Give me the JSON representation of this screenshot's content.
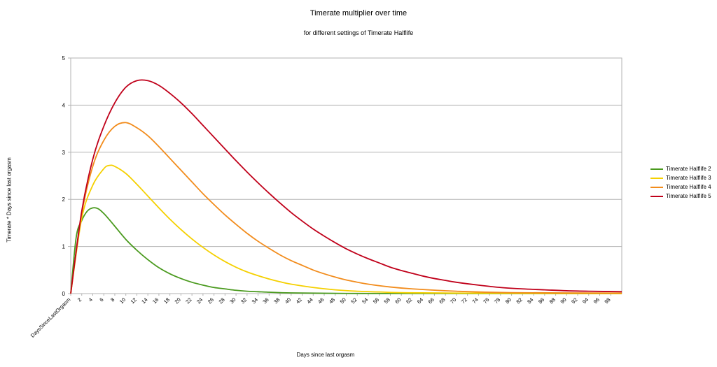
{
  "chart_data": {
    "type": "line",
    "title": "Timerate multiplier over time",
    "subtitle": "for different settings of Timerate Halflife",
    "xlabel": "Days since last orgasm",
    "ylabel": "Timerate * Days since last orgasm",
    "first_category_label": "DaysSinceLastOrgasm",
    "x_tick_labels": [
      "2",
      "4",
      "6",
      "8",
      "10",
      "12",
      "14",
      "16",
      "18",
      "20",
      "22",
      "24",
      "26",
      "28",
      "30",
      "32",
      "34",
      "36",
      "38",
      "40",
      "42",
      "44",
      "46",
      "48",
      "50",
      "52",
      "54",
      "56",
      "58",
      "60",
      "62",
      "64",
      "66",
      "68",
      "70",
      "72",
      "74",
      "76",
      "78",
      "80",
      "82",
      "84",
      "86",
      "88",
      "90",
      "92",
      "94",
      "96",
      "98"
    ],
    "xlim": [
      0,
      100
    ],
    "ylim": [
      0,
      5
    ],
    "y_ticks": [
      0,
      1,
      2,
      3,
      4,
      5
    ],
    "grid": true,
    "legend_position": "right",
    "series": [
      {
        "name": "Timerate Halflife 2",
        "color": "#4a9a1e",
        "points": [
          [
            0,
            0
          ],
          [
            1,
            1.2
          ],
          [
            2,
            1.55
          ],
          [
            3,
            1.75
          ],
          [
            4,
            1.82
          ],
          [
            5,
            1.8
          ],
          [
            6,
            1.7
          ],
          [
            7,
            1.57
          ],
          [
            8,
            1.43
          ],
          [
            10,
            1.15
          ],
          [
            12,
            0.92
          ],
          [
            14,
            0.72
          ],
          [
            16,
            0.55
          ],
          [
            18,
            0.42
          ],
          [
            20,
            0.32
          ],
          [
            22,
            0.24
          ],
          [
            24,
            0.18
          ],
          [
            26,
            0.13
          ],
          [
            28,
            0.1
          ],
          [
            30,
            0.07
          ],
          [
            32,
            0.05
          ],
          [
            34,
            0.04
          ],
          [
            36,
            0.03
          ],
          [
            40,
            0.015
          ],
          [
            50,
            0.004
          ],
          [
            60,
            0.002
          ],
          [
            100,
            0.0
          ]
        ]
      },
      {
        "name": "Timerate Halflife 3",
        "color": "#f5d000",
        "points": [
          [
            0,
            0
          ],
          [
            2,
            1.6
          ],
          [
            4,
            2.3
          ],
          [
            6,
            2.65
          ],
          [
            7,
            2.72
          ],
          [
            8,
            2.7
          ],
          [
            10,
            2.55
          ],
          [
            12,
            2.32
          ],
          [
            14,
            2.07
          ],
          [
            16,
            1.82
          ],
          [
            18,
            1.58
          ],
          [
            20,
            1.36
          ],
          [
            22,
            1.16
          ],
          [
            24,
            0.98
          ],
          [
            26,
            0.82
          ],
          [
            28,
            0.68
          ],
          [
            30,
            0.56
          ],
          [
            32,
            0.46
          ],
          [
            34,
            0.38
          ],
          [
            36,
            0.31
          ],
          [
            38,
            0.25
          ],
          [
            40,
            0.2
          ],
          [
            44,
            0.13
          ],
          [
            48,
            0.08
          ],
          [
            52,
            0.05
          ],
          [
            56,
            0.035
          ],
          [
            60,
            0.02
          ],
          [
            70,
            0.01
          ],
          [
            100,
            0.0
          ]
        ]
      },
      {
        "name": "Timerate Halflife 4",
        "color": "#f28c1c",
        "points": [
          [
            0,
            0
          ],
          [
            2,
            1.7
          ],
          [
            4,
            2.7
          ],
          [
            6,
            3.25
          ],
          [
            8,
            3.55
          ],
          [
            10,
            3.63
          ],
          [
            12,
            3.52
          ],
          [
            14,
            3.35
          ],
          [
            16,
            3.12
          ],
          [
            18,
            2.87
          ],
          [
            20,
            2.62
          ],
          [
            22,
            2.37
          ],
          [
            24,
            2.12
          ],
          [
            26,
            1.89
          ],
          [
            28,
            1.67
          ],
          [
            30,
            1.47
          ],
          [
            32,
            1.28
          ],
          [
            34,
            1.11
          ],
          [
            36,
            0.96
          ],
          [
            38,
            0.82
          ],
          [
            40,
            0.7
          ],
          [
            42,
            0.6
          ],
          [
            44,
            0.5
          ],
          [
            46,
            0.42
          ],
          [
            48,
            0.35
          ],
          [
            50,
            0.29
          ],
          [
            54,
            0.2
          ],
          [
            58,
            0.14
          ],
          [
            62,
            0.1
          ],
          [
            70,
            0.05
          ],
          [
            80,
            0.02
          ],
          [
            100,
            0.01
          ]
        ]
      },
      {
        "name": "Timerate Halflife 5",
        "color": "#c0001a",
        "points": [
          [
            0,
            0
          ],
          [
            2,
            1.75
          ],
          [
            4,
            2.85
          ],
          [
            6,
            3.55
          ],
          [
            8,
            4.05
          ],
          [
            10,
            4.38
          ],
          [
            12,
            4.52
          ],
          [
            14,
            4.52
          ],
          [
            16,
            4.42
          ],
          [
            18,
            4.25
          ],
          [
            20,
            4.05
          ],
          [
            22,
            3.82
          ],
          [
            24,
            3.57
          ],
          [
            26,
            3.32
          ],
          [
            28,
            3.07
          ],
          [
            30,
            2.82
          ],
          [
            32,
            2.58
          ],
          [
            34,
            2.35
          ],
          [
            36,
            2.13
          ],
          [
            38,
            1.92
          ],
          [
            40,
            1.72
          ],
          [
            42,
            1.54
          ],
          [
            44,
            1.37
          ],
          [
            46,
            1.22
          ],
          [
            48,
            1.08
          ],
          [
            50,
            0.95
          ],
          [
            52,
            0.84
          ],
          [
            54,
            0.74
          ],
          [
            56,
            0.65
          ],
          [
            58,
            0.56
          ],
          [
            60,
            0.49
          ],
          [
            62,
            0.43
          ],
          [
            64,
            0.37
          ],
          [
            66,
            0.32
          ],
          [
            68,
            0.28
          ],
          [
            70,
            0.24
          ],
          [
            74,
            0.18
          ],
          [
            78,
            0.13
          ],
          [
            82,
            0.1
          ],
          [
            86,
            0.08
          ],
          [
            90,
            0.06
          ],
          [
            94,
            0.05
          ],
          [
            100,
            0.04
          ]
        ]
      }
    ]
  }
}
